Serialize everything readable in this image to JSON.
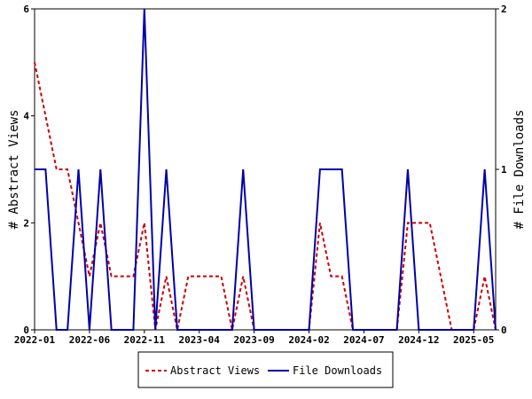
{
  "chart_data": {
    "type": "line",
    "ylabel_left": "# Abstract Views",
    "ylabel_right": "# File Downloads",
    "ylim_left": [
      0,
      6
    ],
    "ylim_right": [
      0,
      2
    ],
    "yticks_left": [
      "0",
      "2",
      "4",
      "6"
    ],
    "yticks_right": [
      "0",
      "1",
      "2"
    ],
    "xticks": [
      "2022-01",
      "2022-06",
      "2022-11",
      "2023-04",
      "2023-09",
      "2024-02",
      "2024-07",
      "2024-12",
      "2025-05"
    ],
    "legend": {
      "position": "bottom"
    },
    "series": [
      {
        "name": "Abstract Views",
        "axis": "left",
        "color": "#cc0000",
        "style": "dashed",
        "values": [
          5,
          4,
          3,
          3,
          2,
          1,
          2,
          1,
          1,
          1,
          2,
          0,
          1,
          0,
          1,
          1,
          1,
          1,
          0,
          1,
          0,
          0,
          0,
          0,
          0,
          0,
          2,
          1,
          1,
          0,
          0,
          0,
          0,
          0,
          2,
          2,
          2,
          1,
          0,
          0,
          0,
          1,
          0
        ]
      },
      {
        "name": "File Downloads",
        "axis": "right",
        "color": "#0000aa",
        "style": "solid",
        "values": [
          1,
          1,
          0,
          0,
          1,
          0,
          1,
          0,
          0,
          0,
          2,
          0,
          1,
          0,
          0,
          0,
          0,
          0,
          0,
          1,
          0,
          0,
          0,
          0,
          0,
          0,
          1,
          1,
          1,
          0,
          0,
          0,
          0,
          0,
          1,
          0,
          0,
          0,
          0,
          0,
          0,
          1,
          0
        ]
      }
    ]
  }
}
